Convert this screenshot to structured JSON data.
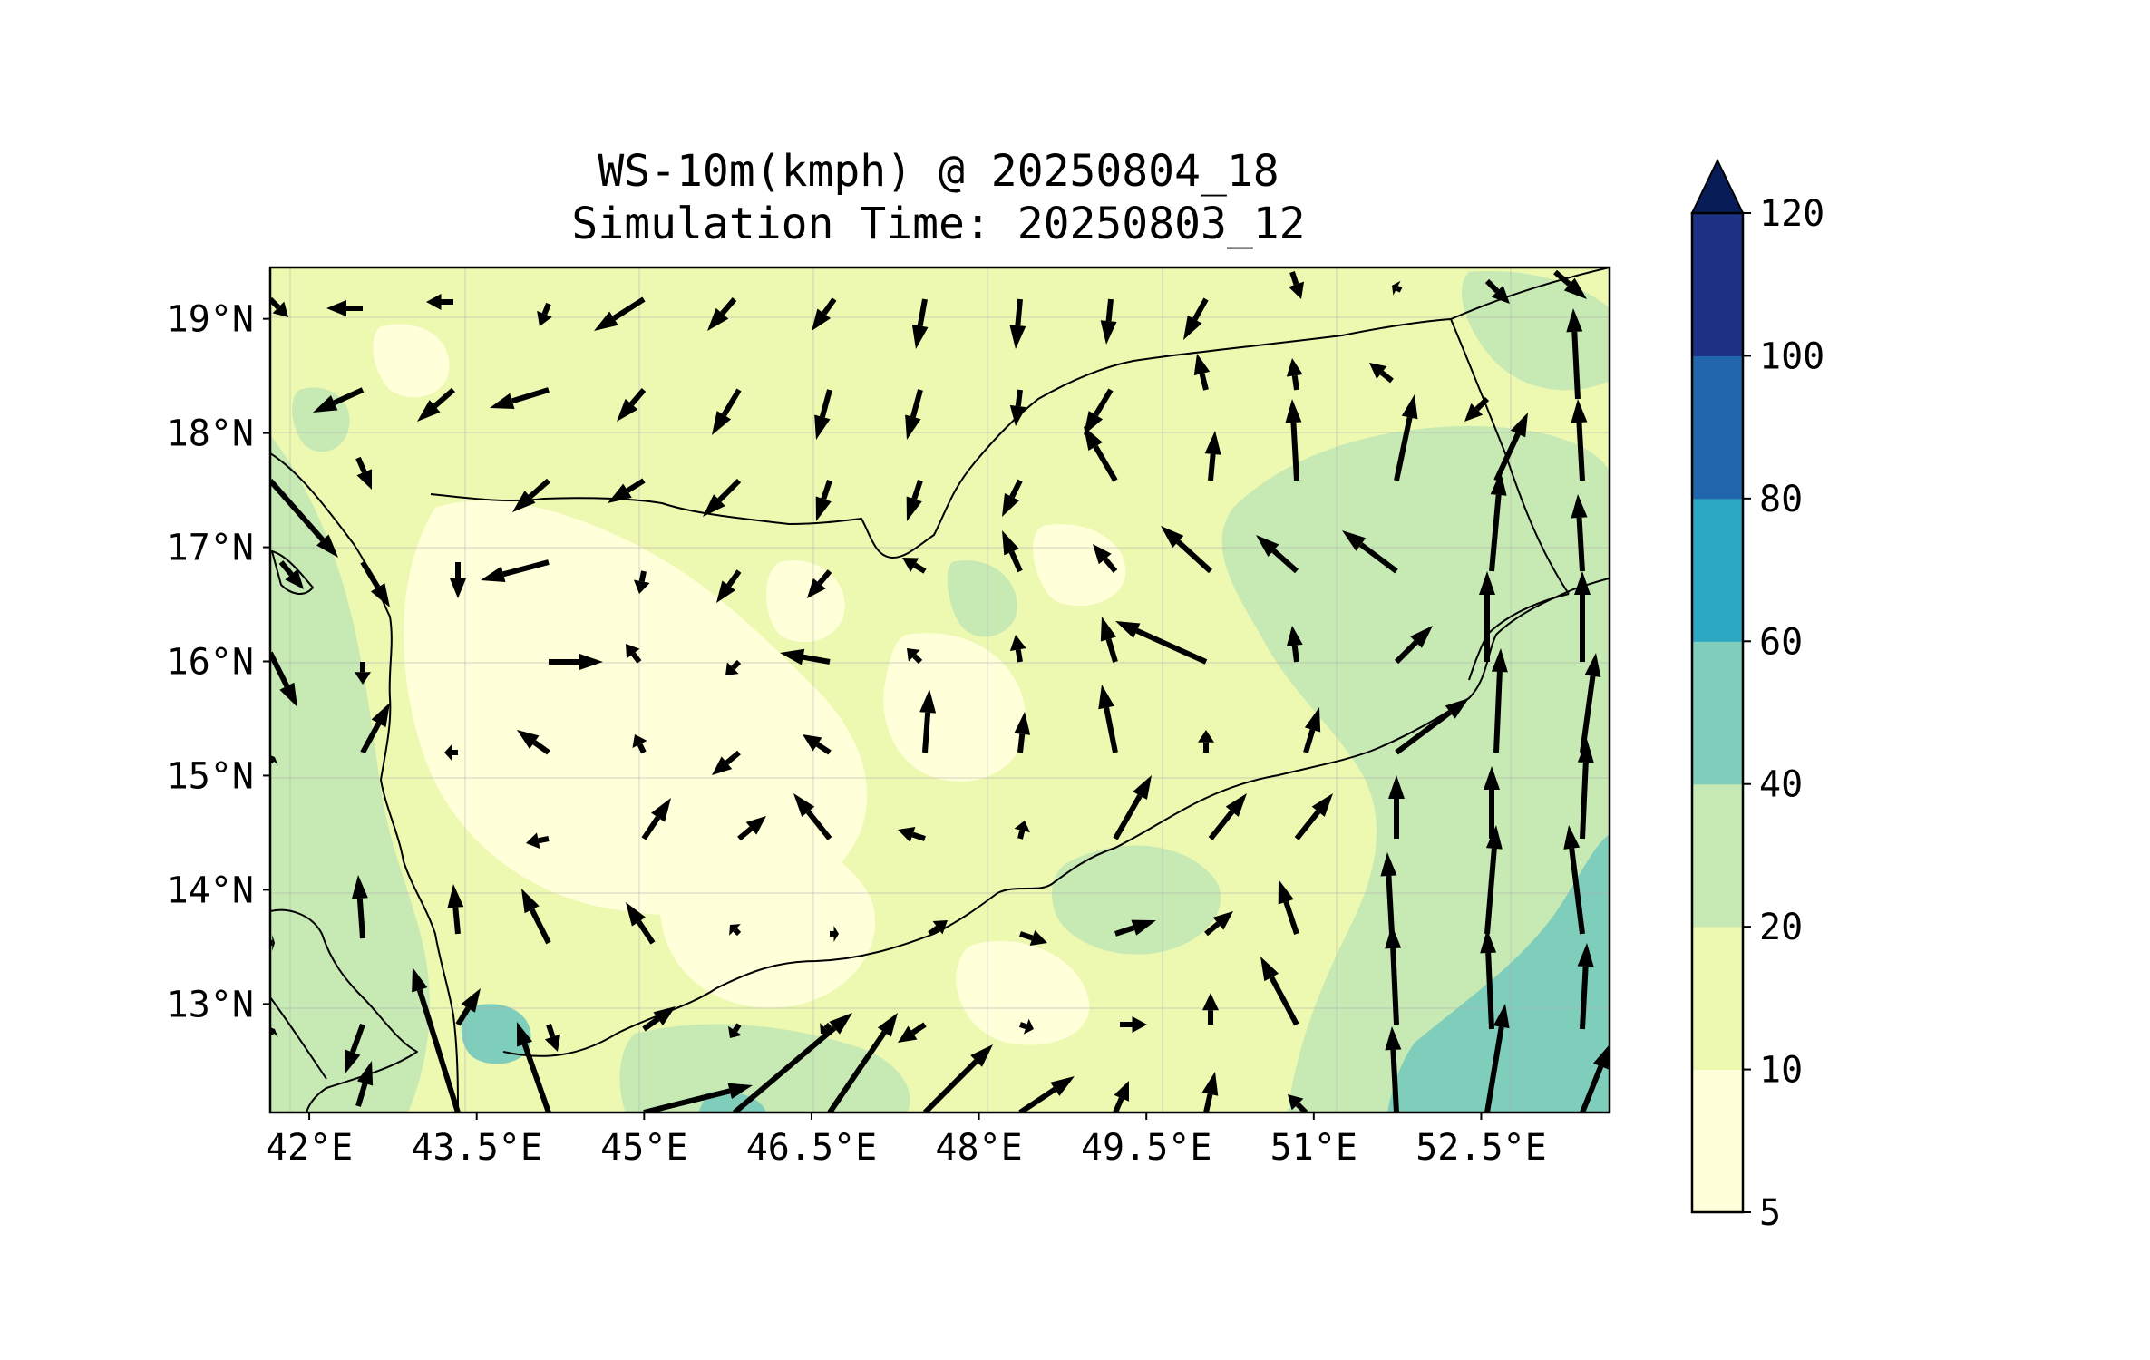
{
  "title": {
    "line1": "WS-10m(kmph) @ 20250804_18",
    "line2": "Simulation Time: 20250803_12"
  },
  "map": {
    "lon_range": [
      41.65,
      53.65
    ],
    "lat_range": [
      12.05,
      19.45
    ],
    "lon_ticks": [
      {
        "value": 42.0,
        "label": "42°E"
      },
      {
        "value": 43.5,
        "label": "43.5°E"
      },
      {
        "value": 45.0,
        "label": "45°E"
      },
      {
        "value": 46.5,
        "label": "46.5°E"
      },
      {
        "value": 48.0,
        "label": "48°E"
      },
      {
        "value": 49.5,
        "label": "49.5°E"
      },
      {
        "value": 51.0,
        "label": "51°E"
      },
      {
        "value": 52.5,
        "label": "52.5°E"
      }
    ],
    "lat_ticks": [
      {
        "value": 19,
        "label": "19°N"
      },
      {
        "value": 18,
        "label": "18°N"
      },
      {
        "value": 17,
        "label": "17°N"
      },
      {
        "value": 16,
        "label": "16°N"
      },
      {
        "value": 15,
        "label": "15°N"
      },
      {
        "value": 14,
        "label": "14°N"
      },
      {
        "value": 13,
        "label": "13°N"
      }
    ],
    "grid": true,
    "field_variable": "10 m wind speed",
    "arrow_color": "#000000"
  },
  "colorbar": {
    "levels": [
      "5",
      "10",
      "20",
      "40",
      "60",
      "80",
      "100",
      "120"
    ],
    "colors": [
      "#ffffd9",
      "#edf8b1",
      "#c7e9b4",
      "#7fcdbb",
      "#2ca7c4",
      "#2166ac",
      "#1d3284",
      "#081d58"
    ],
    "extend": "max"
  }
}
